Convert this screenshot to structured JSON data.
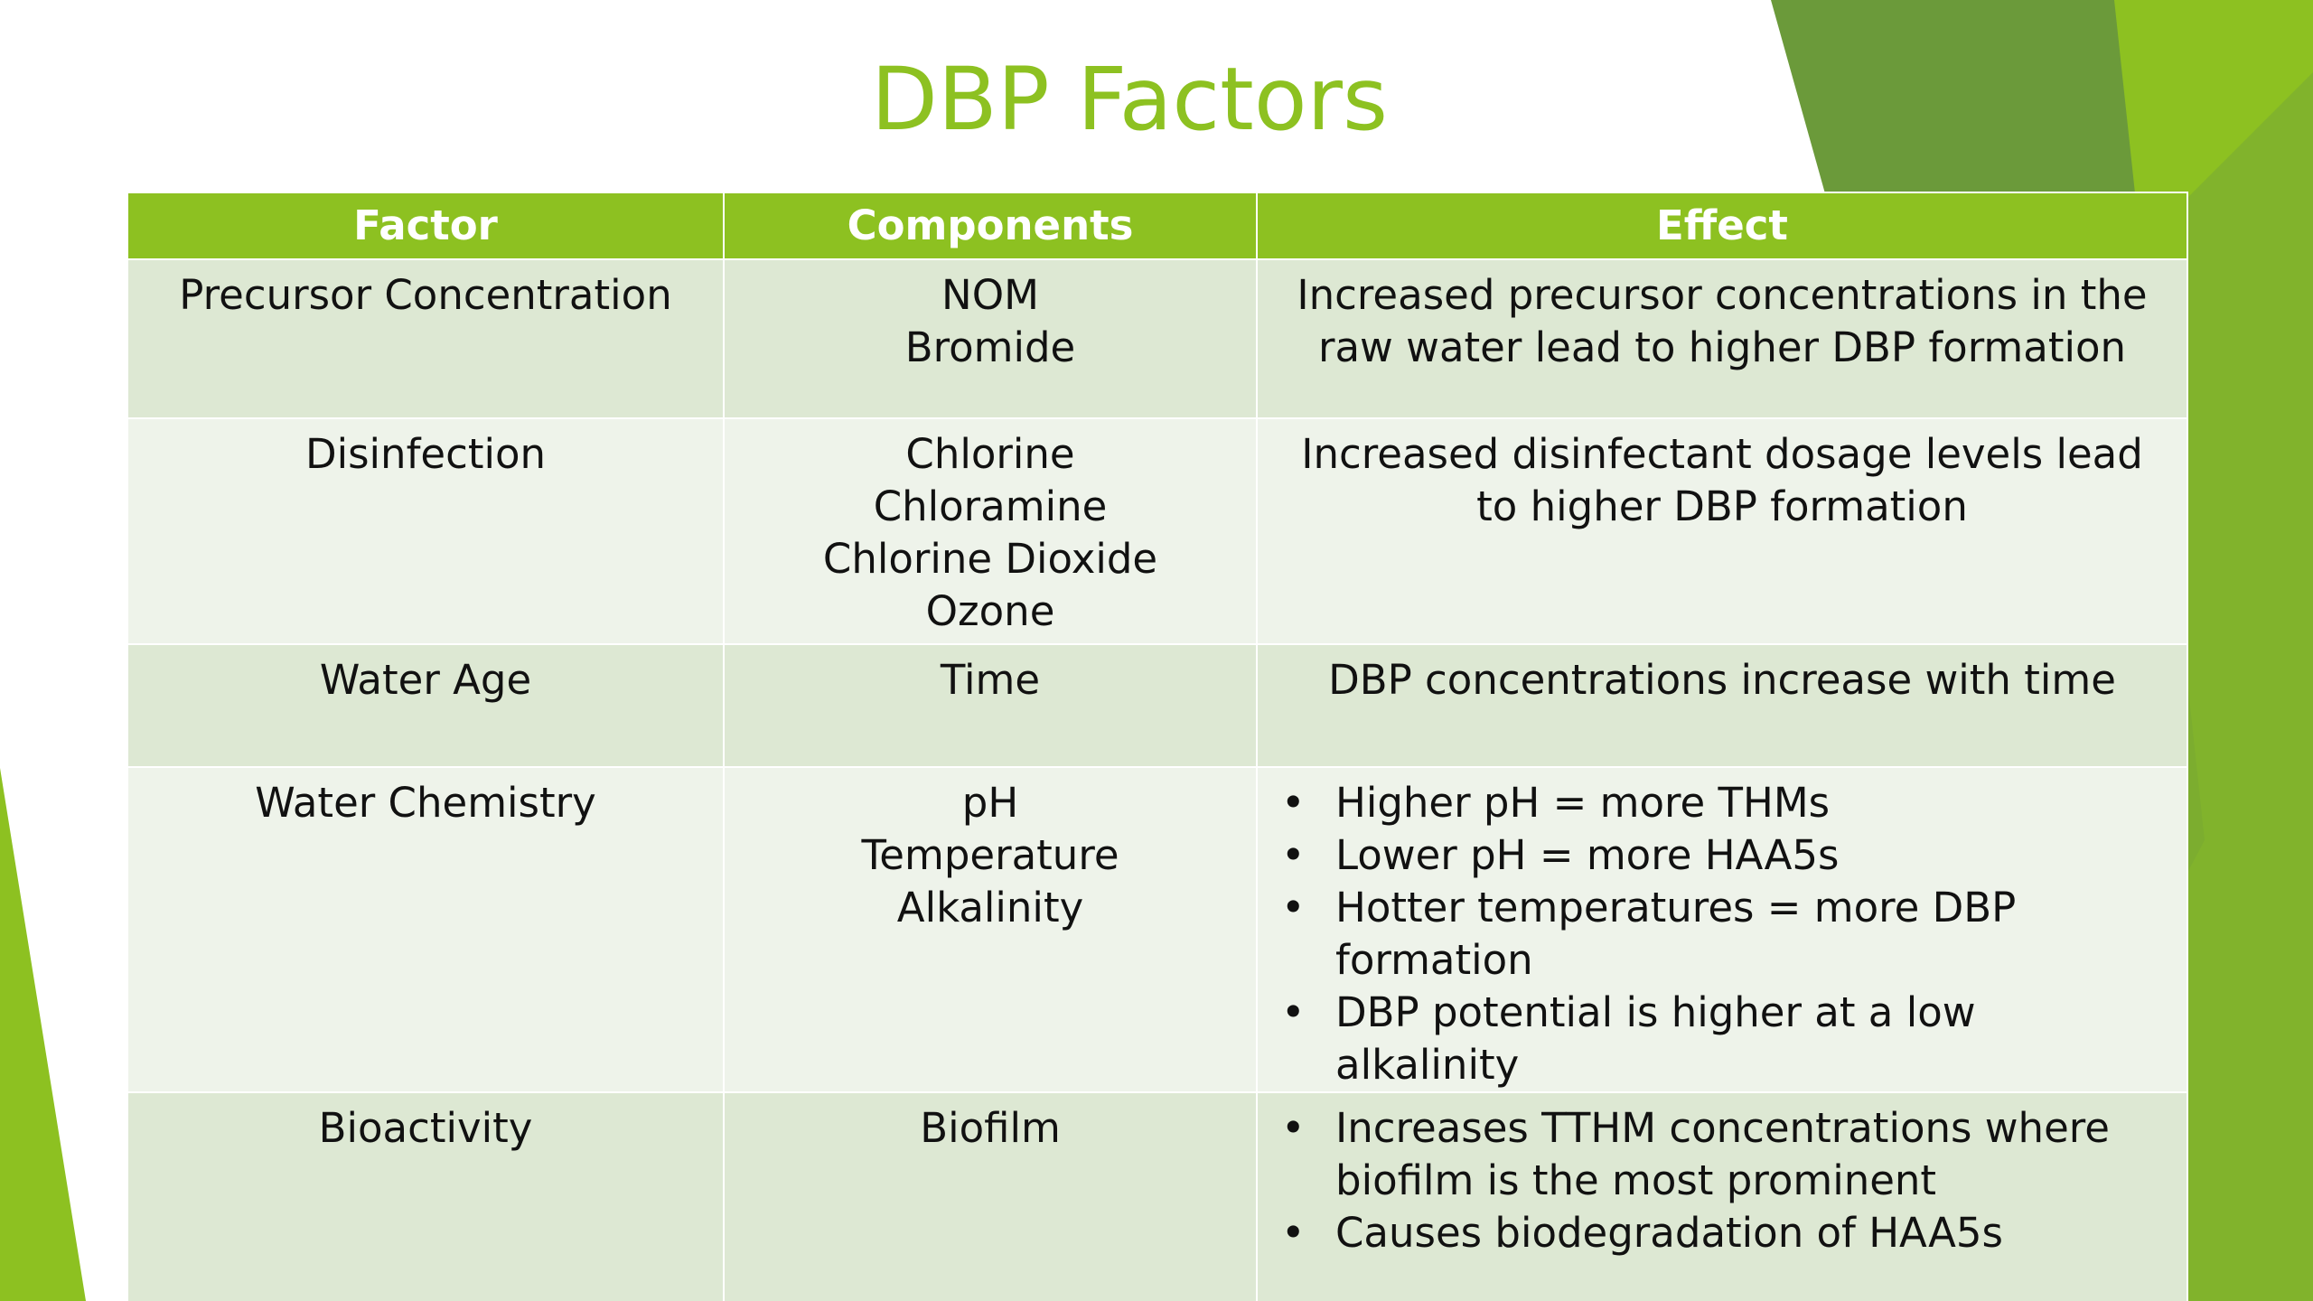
{
  "slide": {
    "title": "DBP Factors",
    "colors": {
      "accent": "#8dc121",
      "accent_dark": "#6b9a3a",
      "row_dark": "#dde8d3",
      "row_light": "#eef3ea"
    }
  },
  "table": {
    "headers": {
      "factor": "Factor",
      "components": "Components",
      "effect": "Effect"
    },
    "rows": [
      {
        "factor": "Precursor Concentration",
        "components": [
          "NOM",
          "Bromide"
        ],
        "effect_text": "Increased precursor concentrations in the raw water lead to higher DBP formation"
      },
      {
        "factor": "Disinfection",
        "components": [
          "Chlorine",
          "Chloramine",
          "Chlorine Dioxide",
          "Ozone"
        ],
        "effect_text": "Increased disinfectant dosage levels lead to higher DBP formation"
      },
      {
        "factor": "Water Age",
        "components": [
          "Time"
        ],
        "effect_text": "DBP concentrations increase with time"
      },
      {
        "factor": "Water Chemistry",
        "components": [
          "pH",
          "Temperature",
          "Alkalinity"
        ],
        "effect_bullets": [
          "Higher pH = more THMs",
          "Lower pH = more HAA5s",
          "Hotter temperatures = more DBP formation",
          "DBP potential is higher at a low alkalinity"
        ]
      },
      {
        "factor": "Bioactivity",
        "components": [
          "Biofilm"
        ],
        "effect_bullets": [
          "Increases TTHM concentrations where biofilm is the most prominent",
          "Causes biodegradation of HAA5s"
        ]
      }
    ]
  }
}
